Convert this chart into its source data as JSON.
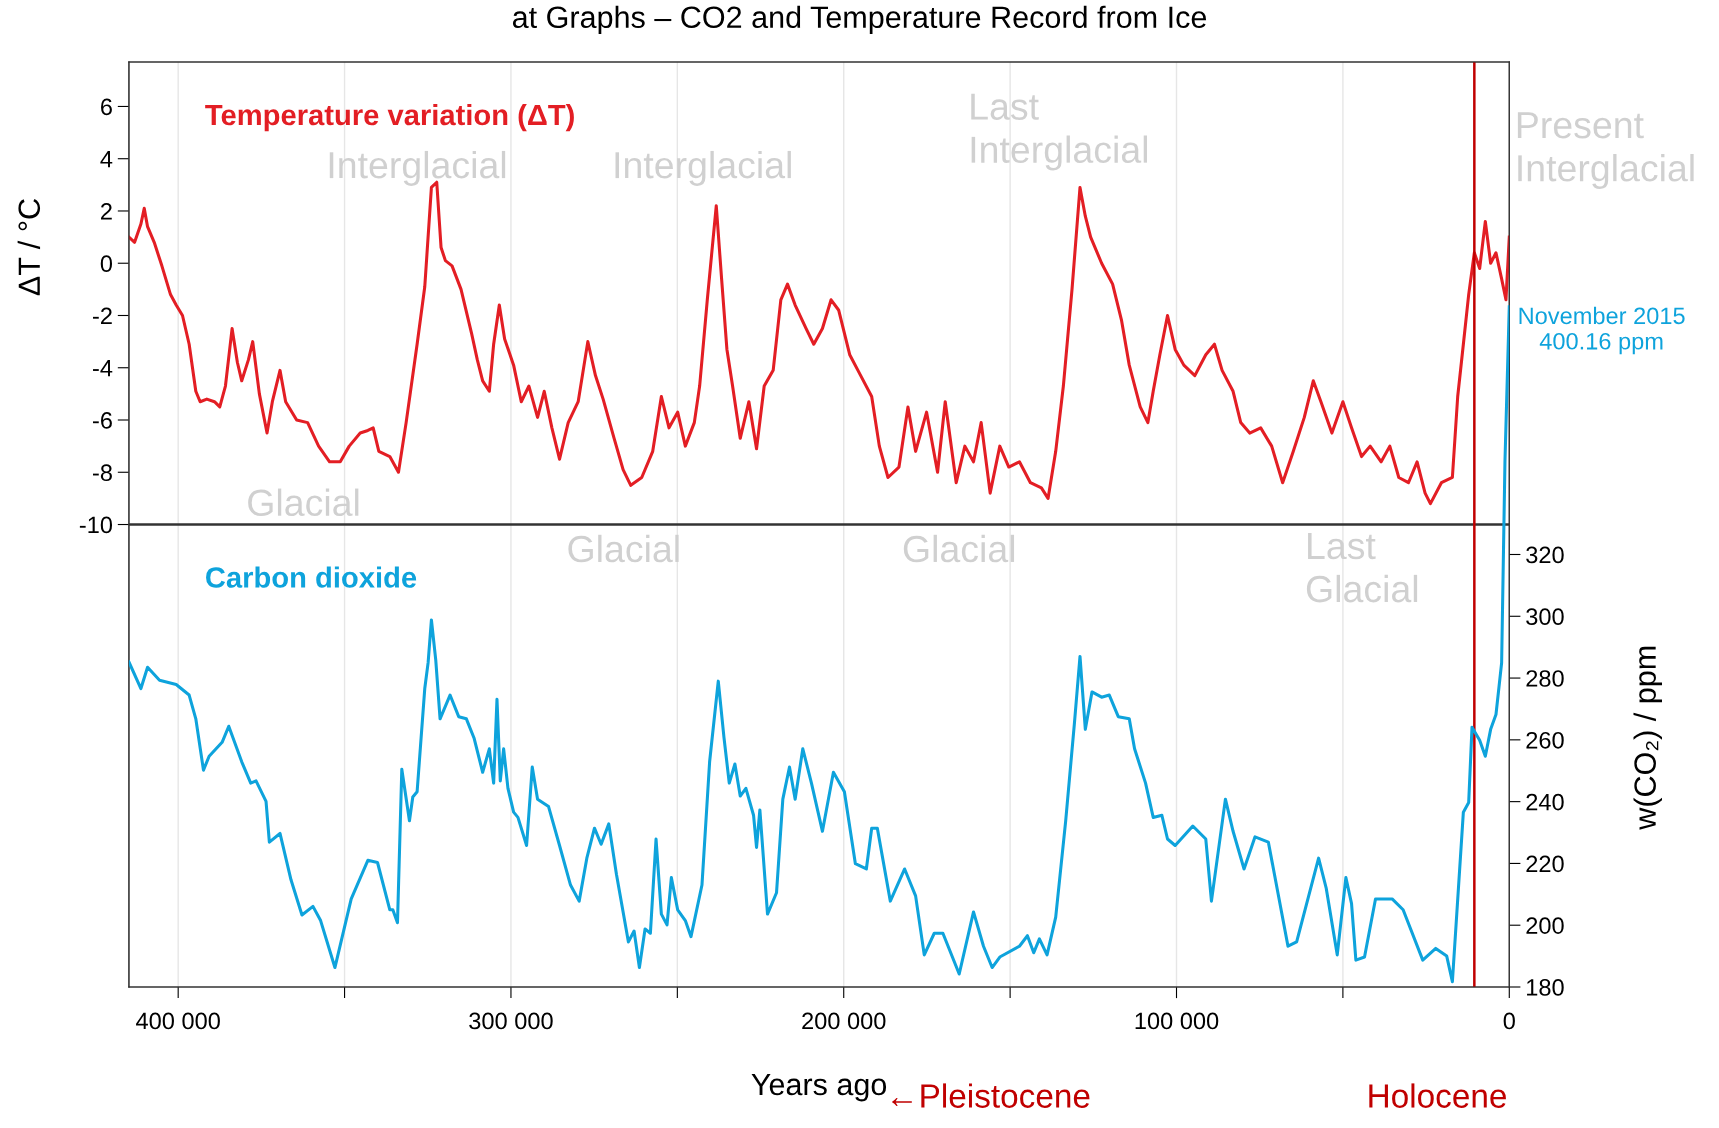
{
  "chart_data": {
    "type": "line",
    "title": "at Graphs – CO2 and Temperature Record from Ice",
    "xlabel": "Years ago",
    "ylabel": "ΔT / °C",
    "y2label": "w(CO₂) / ppm",
    "xlim": [
      414800,
      0
    ],
    "xticks": [
      {
        "value": 400000,
        "label": "400 000"
      },
      {
        "value": 350000,
        "label": null
      },
      {
        "value": 300000,
        "label": "300 000"
      },
      {
        "value": 250000,
        "label": null
      },
      {
        "value": 200000,
        "label": "200 000"
      },
      {
        "value": 150000,
        "label": null
      },
      {
        "value": 100000,
        "label": "100 000"
      },
      {
        "value": 50000,
        "label": null
      },
      0
    ],
    "ylim": [
      -27.7,
      7.7
    ],
    "yticks": [
      -10,
      -8,
      -6,
      -4,
      -2,
      0,
      2,
      4,
      6
    ],
    "y2lim": [
      180,
      479.4
    ],
    "y2ticks": [
      180,
      200,
      220,
      240,
      260,
      280,
      300,
      320
    ],
    "grid": "x",
    "ref_lines": [
      {
        "axis": "y",
        "value": -10,
        "label": null,
        "color": "#333333"
      },
      {
        "axis": "x",
        "value": 10500,
        "label": null,
        "color": "#c00000"
      }
    ],
    "series": [
      {
        "name": "Temperature variation (ΔT)",
        "color": "#e31e24",
        "x": [
          414800,
          413100,
          411200,
          410200,
          409200,
          407200,
          404900,
          402300,
          400600,
          398700,
          396700,
          394700,
          393400,
          391400,
          389100,
          387500,
          385800,
          383800,
          382200,
          380900,
          378900,
          377600,
          375600,
          373300,
          371700,
          369400,
          367700,
          364400,
          361100,
          357800,
          354500,
          351300,
          348600,
          345300,
          343000,
          341400,
          339700,
          336400,
          333800,
          331500,
          328200,
          325900,
          323900,
          322300,
          321000,
          319700,
          317700,
          315000,
          311800,
          310100,
          308500,
          306500,
          305200,
          303500,
          301900,
          299200,
          296900,
          294600,
          292000,
          290000,
          287700,
          285400,
          282800,
          279800,
          276900,
          274600,
          272300,
          269000,
          266300,
          264000,
          260700,
          257400,
          254800,
          252500,
          249900,
          247600,
          244900,
          243300,
          241000,
          238300,
          236700,
          235100,
          233400,
          231100,
          228500,
          226200,
          223900,
          221200,
          218900,
          216900,
          214600,
          211300,
          209000,
          206400,
          203800,
          201500,
          198200,
          194900,
          191600,
          189300,
          186700,
          183400,
          180700,
          178400,
          175100,
          171800,
          169500,
          166200,
          163600,
          161000,
          158700,
          156000,
          153100,
          150400,
          147200,
          143900,
          140600,
          138600,
          136300,
          134000,
          131400,
          129000,
          127400,
          125800,
          122500,
          119200,
          116500,
          114200,
          110900,
          108600,
          107000,
          105000,
          102700,
          100400,
          97800,
          94500,
          91200,
          88600,
          86300,
          83000,
          80700,
          78000,
          74700,
          71400,
          68100,
          64900,
          61600,
          58900,
          56600,
          53300,
          50000,
          47400,
          44400,
          41800,
          38500,
          35900,
          33200,
          30300,
          27700,
          25300,
          23700,
          20400,
          17100,
          15500,
          13800,
          12200,
          10500,
          8900,
          7200,
          5600,
          4000,
          2300,
          1000,
          0
        ],
        "values": [
          1.0,
          0.8,
          1.5,
          2.1,
          1.4,
          0.8,
          -0.1,
          -1.2,
          -1.6,
          -2.0,
          -3.1,
          -4.9,
          -5.3,
          -5.2,
          -5.3,
          -5.5,
          -4.7,
          -2.5,
          -3.8,
          -4.5,
          -3.7,
          -3.0,
          -5.0,
          -6.5,
          -5.3,
          -4.1,
          -5.3,
          -6.0,
          -6.1,
          -7.0,
          -7.6,
          -7.6,
          -7.0,
          -6.5,
          -6.4,
          -6.3,
          -7.2,
          -7.4,
          -8.0,
          -6.1,
          -3.1,
          -0.9,
          2.9,
          3.1,
          0.6,
          0.1,
          -0.1,
          -1.0,
          -2.7,
          -3.7,
          -4.5,
          -4.9,
          -3.1,
          -1.6,
          -2.9,
          -3.9,
          -5.3,
          -4.7,
          -5.9,
          -4.9,
          -6.3,
          -7.5,
          -6.1,
          -5.3,
          -3.0,
          -4.3,
          -5.2,
          -6.7,
          -7.9,
          -8.5,
          -8.2,
          -7.2,
          -5.1,
          -6.3,
          -5.7,
          -7.0,
          -6.1,
          -4.7,
          -1.4,
          2.2,
          -0.6,
          -3.3,
          -4.7,
          -6.7,
          -5.3,
          -7.1,
          -4.7,
          -4.1,
          -1.4,
          -0.8,
          -1.6,
          -2.5,
          -3.1,
          -2.5,
          -1.4,
          -1.8,
          -3.5,
          -4.3,
          -5.1,
          -7.0,
          -8.2,
          -7.8,
          -5.5,
          -7.2,
          -5.7,
          -8.0,
          -5.3,
          -8.4,
          -7.0,
          -7.6,
          -6.1,
          -8.8,
          -7.0,
          -7.8,
          -7.6,
          -8.4,
          -8.6,
          -9.0,
          -7.2,
          -4.7,
          -1.0,
          2.9,
          1.8,
          1.0,
          0.0,
          -0.8,
          -2.2,
          -3.9,
          -5.5,
          -6.1,
          -4.9,
          -3.5,
          -2.0,
          -3.3,
          -3.9,
          -4.3,
          -3.5,
          -3.1,
          -4.1,
          -4.9,
          -6.1,
          -6.5,
          -6.3,
          -7.0,
          -8.4,
          -7.2,
          -5.9,
          -4.5,
          -5.3,
          -6.5,
          -5.3,
          -6.3,
          -7.4,
          -7.0,
          -7.6,
          -7.0,
          -8.2,
          -8.4,
          -7.6,
          -8.8,
          -9.2,
          -8.4,
          -8.2,
          -5.1,
          -3.1,
          -1.2,
          0.4,
          -0.2,
          1.6,
          0.0,
          0.4,
          -0.6,
          -1.4,
          1.0
        ]
      },
      {
        "name": "Carbon dioxide",
        "color": "#0ea3dc",
        "axis": "y2",
        "x": [
          414800,
          411200,
          409200,
          405600,
          400600,
          396700,
          394700,
          392400,
          390700,
          386800,
          384800,
          380900,
          378200,
          376600,
          373600,
          372600,
          369400,
          366100,
          362800,
          359500,
          357200,
          352900,
          348000,
          343000,
          340100,
          336400,
          335500,
          334100,
          332800,
          330500,
          329500,
          328200,
          325900,
          324900,
          323900,
          322600,
          321300,
          318300,
          315700,
          313400,
          311100,
          308500,
          306500,
          305200,
          304200,
          303200,
          302200,
          300900,
          299200,
          297900,
          295300,
          293600,
          292000,
          288700,
          285400,
          282100,
          279500,
          277200,
          274900,
          272900,
          270600,
          268300,
          264700,
          263000,
          261400,
          259700,
          258100,
          256400,
          254800,
          253100,
          251800,
          249900,
          247600,
          245900,
          242600,
          240300,
          237700,
          236000,
          234400,
          232700,
          231100,
          229400,
          227100,
          226200,
          225200,
          222900,
          220200,
          218300,
          216300,
          214600,
          212300,
          209700,
          206400,
          203100,
          199800,
          196500,
          193200,
          191600,
          189900,
          186000,
          181700,
          178400,
          175800,
          172800,
          170200,
          165300,
          161000,
          158000,
          155400,
          153100,
          147200,
          144800,
          142900,
          141200,
          138900,
          136300,
          133300,
          130700,
          129000,
          127400,
          125400,
          122500,
          120200,
          117500,
          114200,
          112600,
          109300,
          107000,
          104400,
          102700,
          100400,
          95100,
          91200,
          89500,
          85300,
          83000,
          79700,
          76400,
          72400,
          66500,
          63900,
          57300,
          55000,
          51700,
          49100,
          47400,
          46100,
          43500,
          40200,
          35200,
          31900,
          26000,
          22100,
          18800,
          17100,
          13800,
          12200,
          11200,
          8900,
          7200,
          5600,
          4000,
          2300,
          1300,
          0
        ],
        "values": [
          285.2,
          276.6,
          283.5,
          279.3,
          277.9,
          274.5,
          266.8,
          250.2,
          254.7,
          259.2,
          264.4,
          252.9,
          246.0,
          246.7,
          240.1,
          226.9,
          229.7,
          214.7,
          203.3,
          206.1,
          201.5,
          186.3,
          208.5,
          221.0,
          220.3,
          205.0,
          205.0,
          200.8,
          250.5,
          233.8,
          241.5,
          243.2,
          276.6,
          284.9,
          298.8,
          285.9,
          266.8,
          274.5,
          267.5,
          266.8,
          260.6,
          249.5,
          257.1,
          246.0,
          273.1,
          246.7,
          257.1,
          244.3,
          236.6,
          234.9,
          225.8,
          251.2,
          240.8,
          238.4,
          225.8,
          213.0,
          207.8,
          221.7,
          231.4,
          226.2,
          232.8,
          216.5,
          194.6,
          198.1,
          186.3,
          198.8,
          197.4,
          227.9,
          203.6,
          200.1,
          215.4,
          205.0,
          201.5,
          196.3,
          213.0,
          252.9,
          279.0,
          260.9,
          246.0,
          252.2,
          241.8,
          244.3,
          235.6,
          225.2,
          237.3,
          203.6,
          210.5,
          240.8,
          251.2,
          240.8,
          257.1,
          246.0,
          230.4,
          249.5,
          243.2,
          219.9,
          218.2,
          231.4,
          231.4,
          207.8,
          218.2,
          209.5,
          190.4,
          197.4,
          197.4,
          184.2,
          204.3,
          193.2,
          186.3,
          189.7,
          193.2,
          196.6,
          191.1,
          195.6,
          190.4,
          202.6,
          233.8,
          265.1,
          287.0,
          263.4,
          275.5,
          273.8,
          274.5,
          267.5,
          266.8,
          257.1,
          246.0,
          234.9,
          235.6,
          227.9,
          225.8,
          232.1,
          227.9,
          207.8,
          240.8,
          230.4,
          218.2,
          228.6,
          226.9,
          193.2,
          194.6,
          221.7,
          211.9,
          190.4,
          215.4,
          207.0,
          188.7,
          189.7,
          208.5,
          208.5,
          205.0,
          188.7,
          192.5,
          190.0,
          181.7,
          236.6,
          239.7,
          264.1,
          259.9,
          254.7,
          263.4,
          268.2,
          284.9,
          350.0,
          400.16
        ],
        "value_labels": [
          null,
          null,
          null,
          null,
          null,
          null,
          null,
          null,
          null,
          null,
          null,
          null,
          null,
          null,
          null,
          null,
          null,
          null,
          null,
          null,
          null,
          null,
          null,
          null,
          null,
          null,
          null,
          null,
          null,
          null,
          null,
          null,
          null,
          null,
          null,
          null,
          null,
          null,
          null,
          null,
          null,
          null,
          null,
          null,
          null,
          null,
          null,
          null,
          null,
          null,
          null,
          null,
          null,
          null,
          null,
          null,
          null,
          null,
          null,
          null,
          null,
          null,
          null,
          null,
          null,
          null,
          null,
          null,
          null,
          null,
          null,
          null,
          null,
          null,
          null,
          null,
          null,
          null,
          null,
          null,
          null,
          null,
          null,
          null,
          null,
          null,
          null,
          null,
          null,
          null,
          null,
          null,
          null,
          null,
          null,
          null,
          null,
          null,
          null,
          null,
          null,
          null,
          null,
          null,
          null,
          null,
          null,
          null,
          null,
          null,
          null,
          null,
          null,
          null,
          null,
          null,
          null,
          null,
          null,
          null,
          null,
          null,
          null,
          null,
          null,
          null,
          null,
          null,
          null,
          null,
          null,
          null,
          null,
          null,
          null,
          null,
          null,
          null,
          null,
          null,
          null,
          null,
          null,
          null,
          null,
          null,
          null,
          null,
          null,
          null,
          null,
          null,
          null,
          null,
          null,
          null,
          null,
          null,
          null,
          null,
          null,
          null,
          null,
          null,
          "November 2015\n400.16 ppm"
        ]
      }
    ],
    "annotations": [
      "Interglacial",
      "Interglacial",
      "Last\nInterglacial",
      "Present\nInterglacial",
      "Glacial",
      "Glacial",
      "Glacial",
      "Last\nGlacial",
      "←Pleistocene",
      "Holocene"
    ]
  }
}
